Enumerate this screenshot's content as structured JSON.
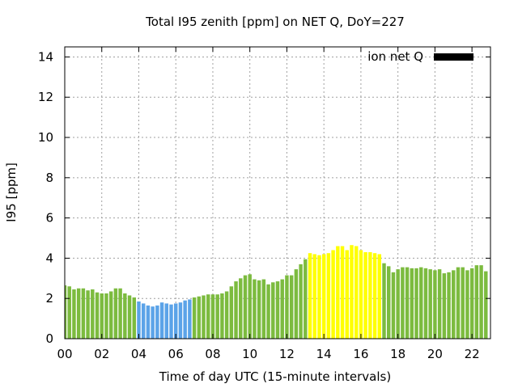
{
  "chart_data": {
    "type": "bar",
    "title": "Total I95 zenith [ppm] on NET Q, DoY=227",
    "xlabel": "Time of day UTC (15-minute intervals)",
    "ylabel": "I95 [ppm]",
    "xlim": [
      0,
      23
    ],
    "ylim": [
      0,
      14.5
    ],
    "x_ticks": [
      {
        "value": 0,
        "label": "00"
      },
      {
        "value": 2,
        "label": "02"
      },
      {
        "value": 4,
        "label": "04"
      },
      {
        "value": 6,
        "label": "06"
      },
      {
        "value": 8,
        "label": "08"
      },
      {
        "value": 10,
        "label": "10"
      },
      {
        "value": 12,
        "label": "12"
      },
      {
        "value": 14,
        "label": "14"
      },
      {
        "value": 16,
        "label": "16"
      },
      {
        "value": 18,
        "label": "18"
      },
      {
        "value": 20,
        "label": "20"
      },
      {
        "value": 22,
        "label": "22"
      }
    ],
    "y_ticks": [
      {
        "value": 0,
        "label": "0"
      },
      {
        "value": 2,
        "label": "2"
      },
      {
        "value": 4,
        "label": "4"
      },
      {
        "value": 6,
        "label": "6"
      },
      {
        "value": 8,
        "label": "8"
      },
      {
        "value": 10,
        "label": "10"
      },
      {
        "value": 12,
        "label": "12"
      },
      {
        "value": 14,
        "label": "14"
      }
    ],
    "grid": true,
    "legend": {
      "label": "ion net Q",
      "placement": "top-right",
      "color": "#000000"
    },
    "colors": {
      "green": "#7cbb3f",
      "blue": "#5ba3e8",
      "yellow": "#ffff00"
    },
    "bars": [
      {
        "x": 0.0,
        "value": 2.65,
        "color": "green"
      },
      {
        "x": 0.25,
        "value": 2.6,
        "color": "green"
      },
      {
        "x": 0.5,
        "value": 2.45,
        "color": "green"
      },
      {
        "x": 0.75,
        "value": 2.5,
        "color": "green"
      },
      {
        "x": 1.0,
        "value": 2.5,
        "color": "green"
      },
      {
        "x": 1.25,
        "value": 2.4,
        "color": "green"
      },
      {
        "x": 1.5,
        "value": 2.45,
        "color": "green"
      },
      {
        "x": 1.75,
        "value": 2.3,
        "color": "green"
      },
      {
        "x": 2.0,
        "value": 2.25,
        "color": "green"
      },
      {
        "x": 2.25,
        "value": 2.25,
        "color": "green"
      },
      {
        "x": 2.5,
        "value": 2.35,
        "color": "green"
      },
      {
        "x": 2.75,
        "value": 2.5,
        "color": "green"
      },
      {
        "x": 3.0,
        "value": 2.5,
        "color": "green"
      },
      {
        "x": 3.25,
        "value": 2.25,
        "color": "green"
      },
      {
        "x": 3.5,
        "value": 2.15,
        "color": "green"
      },
      {
        "x": 3.75,
        "value": 2.05,
        "color": "green"
      },
      {
        "x": 4.0,
        "value": 1.85,
        "color": "blue"
      },
      {
        "x": 4.25,
        "value": 1.75,
        "color": "blue"
      },
      {
        "x": 4.5,
        "value": 1.65,
        "color": "blue"
      },
      {
        "x": 4.75,
        "value": 1.6,
        "color": "blue"
      },
      {
        "x": 5.0,
        "value": 1.65,
        "color": "blue"
      },
      {
        "x": 5.25,
        "value": 1.8,
        "color": "blue"
      },
      {
        "x": 5.5,
        "value": 1.75,
        "color": "blue"
      },
      {
        "x": 5.75,
        "value": 1.7,
        "color": "blue"
      },
      {
        "x": 6.0,
        "value": 1.75,
        "color": "blue"
      },
      {
        "x": 6.25,
        "value": 1.8,
        "color": "blue"
      },
      {
        "x": 6.5,
        "value": 1.9,
        "color": "blue"
      },
      {
        "x": 6.75,
        "value": 1.95,
        "color": "blue"
      },
      {
        "x": 7.0,
        "value": 2.05,
        "color": "green"
      },
      {
        "x": 7.25,
        "value": 2.1,
        "color": "green"
      },
      {
        "x": 7.5,
        "value": 2.15,
        "color": "green"
      },
      {
        "x": 7.75,
        "value": 2.2,
        "color": "green"
      },
      {
        "x": 8.0,
        "value": 2.2,
        "color": "green"
      },
      {
        "x": 8.25,
        "value": 2.2,
        "color": "green"
      },
      {
        "x": 8.5,
        "value": 2.25,
        "color": "green"
      },
      {
        "x": 8.75,
        "value": 2.35,
        "color": "green"
      },
      {
        "x": 9.0,
        "value": 2.6,
        "color": "green"
      },
      {
        "x": 9.25,
        "value": 2.85,
        "color": "green"
      },
      {
        "x": 9.5,
        "value": 3.0,
        "color": "green"
      },
      {
        "x": 9.75,
        "value": 3.15,
        "color": "green"
      },
      {
        "x": 10.0,
        "value": 3.2,
        "color": "green"
      },
      {
        "x": 10.25,
        "value": 2.95,
        "color": "green"
      },
      {
        "x": 10.5,
        "value": 2.9,
        "color": "green"
      },
      {
        "x": 10.75,
        "value": 2.95,
        "color": "green"
      },
      {
        "x": 11.0,
        "value": 2.7,
        "color": "green"
      },
      {
        "x": 11.25,
        "value": 2.8,
        "color": "green"
      },
      {
        "x": 11.5,
        "value": 2.85,
        "color": "green"
      },
      {
        "x": 11.75,
        "value": 2.95,
        "color": "green"
      },
      {
        "x": 12.0,
        "value": 3.15,
        "color": "green"
      },
      {
        "x": 12.25,
        "value": 3.15,
        "color": "green"
      },
      {
        "x": 12.5,
        "value": 3.45,
        "color": "green"
      },
      {
        "x": 12.75,
        "value": 3.7,
        "color": "green"
      },
      {
        "x": 13.0,
        "value": 3.95,
        "color": "green"
      },
      {
        "x": 13.25,
        "value": 4.25,
        "color": "yellow"
      },
      {
        "x": 13.5,
        "value": 4.2,
        "color": "yellow"
      },
      {
        "x": 13.75,
        "value": 4.15,
        "color": "yellow"
      },
      {
        "x": 14.0,
        "value": 4.2,
        "color": "yellow"
      },
      {
        "x": 14.25,
        "value": 4.25,
        "color": "yellow"
      },
      {
        "x": 14.5,
        "value": 4.4,
        "color": "yellow"
      },
      {
        "x": 14.75,
        "value": 4.6,
        "color": "yellow"
      },
      {
        "x": 15.0,
        "value": 4.6,
        "color": "yellow"
      },
      {
        "x": 15.25,
        "value": 4.4,
        "color": "yellow"
      },
      {
        "x": 15.5,
        "value": 4.65,
        "color": "yellow"
      },
      {
        "x": 15.75,
        "value": 4.6,
        "color": "yellow"
      },
      {
        "x": 16.0,
        "value": 4.4,
        "color": "yellow"
      },
      {
        "x": 16.25,
        "value": 4.3,
        "color": "yellow"
      },
      {
        "x": 16.5,
        "value": 4.3,
        "color": "yellow"
      },
      {
        "x": 16.75,
        "value": 4.25,
        "color": "yellow"
      },
      {
        "x": 17.0,
        "value": 4.2,
        "color": "yellow"
      },
      {
        "x": 17.25,
        "value": 3.75,
        "color": "green"
      },
      {
        "x": 17.5,
        "value": 3.6,
        "color": "green"
      },
      {
        "x": 17.75,
        "value": 3.3,
        "color": "green"
      },
      {
        "x": 18.0,
        "value": 3.45,
        "color": "green"
      },
      {
        "x": 18.25,
        "value": 3.55,
        "color": "green"
      },
      {
        "x": 18.5,
        "value": 3.55,
        "color": "green"
      },
      {
        "x": 18.75,
        "value": 3.5,
        "color": "green"
      },
      {
        "x": 19.0,
        "value": 3.5,
        "color": "green"
      },
      {
        "x": 19.25,
        "value": 3.55,
        "color": "green"
      },
      {
        "x": 19.5,
        "value": 3.5,
        "color": "green"
      },
      {
        "x": 19.75,
        "value": 3.45,
        "color": "green"
      },
      {
        "x": 20.0,
        "value": 3.4,
        "color": "green"
      },
      {
        "x": 20.25,
        "value": 3.45,
        "color": "green"
      },
      {
        "x": 20.5,
        "value": 3.25,
        "color": "green"
      },
      {
        "x": 20.75,
        "value": 3.3,
        "color": "green"
      },
      {
        "x": 21.0,
        "value": 3.4,
        "color": "green"
      },
      {
        "x": 21.25,
        "value": 3.55,
        "color": "green"
      },
      {
        "x": 21.5,
        "value": 3.55,
        "color": "green"
      },
      {
        "x": 21.75,
        "value": 3.4,
        "color": "green"
      },
      {
        "x": 22.0,
        "value": 3.5,
        "color": "green"
      },
      {
        "x": 22.25,
        "value": 3.65,
        "color": "green"
      },
      {
        "x": 22.5,
        "value": 3.65,
        "color": "green"
      },
      {
        "x": 22.75,
        "value": 3.35,
        "color": "green"
      }
    ]
  }
}
